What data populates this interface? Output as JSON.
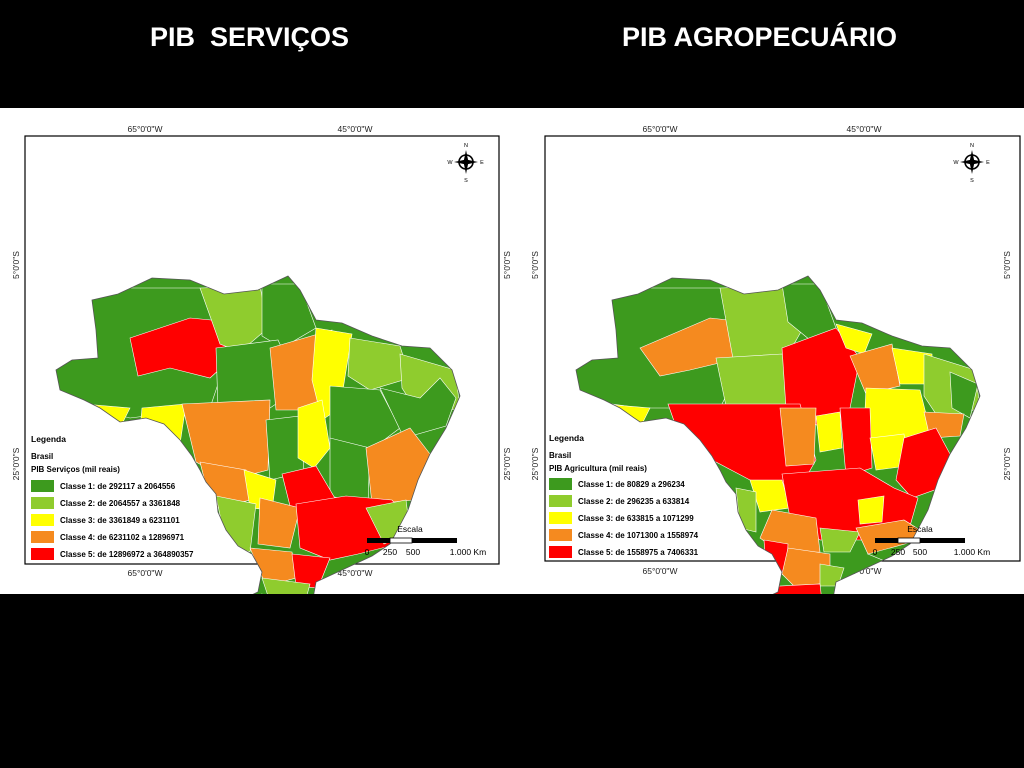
{
  "slide": {
    "title_left": "PIB  SERVIÇOS",
    "title_right": "PIB AGROPECUÁRIO"
  },
  "class_colors": [
    "#3d9a1e",
    "#8fcc2e",
    "#ffff00",
    "#f58a1f",
    "#ff0000"
  ],
  "panels": [
    {
      "id": "left",
      "graticule": {
        "top": [
          "65°0'0\"W",
          "45°0'0\"W"
        ],
        "bottom": [
          "65°0'0\"W",
          "45°0'0\"W"
        ],
        "left": [
          "5°0'0\"S",
          "25°0'0\"S"
        ],
        "right": [
          "5°0'0\"S",
          "25°0'0\"S"
        ]
      },
      "legend": {
        "title": "Legenda",
        "layer": "Brasil",
        "subtitle": "PIB Serviços (mil reais)",
        "classes": [
          "Classe 1: de 292117 a 2064556",
          "Classe 2: de 2064557 a 3361848",
          "Classe 3: de 3361849 a 6231101",
          "Classe 4: de 6231102 a 12896971",
          "Classe 5: de 12896972 a 364890357"
        ]
      },
      "scale": {
        "title": "Escala",
        "ticks": [
          "0",
          "250",
          "500",
          "1.000 Km"
        ]
      },
      "compass": {
        "n": "N",
        "s": "S",
        "e": "E",
        "w": "W"
      }
    },
    {
      "id": "right",
      "graticule": {
        "top": [
          "65°0'0\"W",
          "45°0'0\"W"
        ],
        "bottom": [
          "65°0'0\"W",
          "45°0'0\"W"
        ],
        "left": [
          "5°0'0\"S",
          "25°0'0\"S"
        ],
        "right": [
          "5°0'0\"S",
          "25°0'0\"S"
        ]
      },
      "legend": {
        "title": "Legenda",
        "layer": "Brasil",
        "subtitle": "PIB Agricultura (mil reais)",
        "classes": [
          "Classe 1: de 80829 a 296234",
          "Classe 2: de 296235 a 633814",
          "Classe 3: de 633815 a 1071299",
          "Classe 4: de 1071300 a 1558974",
          "Classe 5: de 1558975 a 7406331"
        ]
      },
      "scale": {
        "title": "Escala",
        "ticks": [
          "0",
          "250",
          "500",
          "1.000 Km"
        ]
      },
      "compass": {
        "n": "N",
        "s": "S",
        "e": "E",
        "w": "W"
      }
    }
  ]
}
